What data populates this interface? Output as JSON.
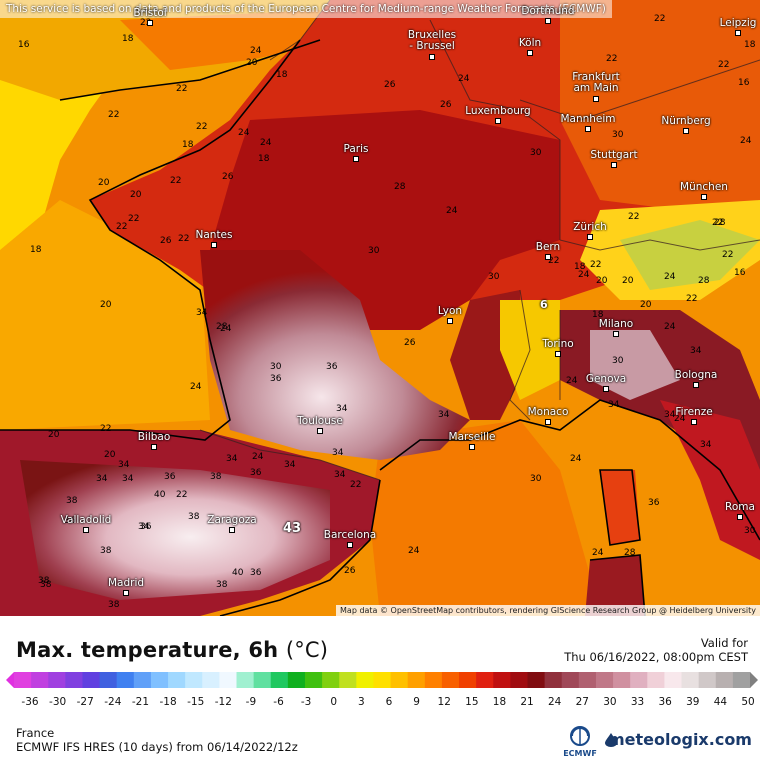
{
  "header": {
    "notice": "This service is based on data and products of the European Centre for Medium-range Weather Forecasts (ECMWF)"
  },
  "map": {
    "attribution": "Map data © OpenStreetMap contributors, rendering GIScience Research Group @ Heidelberg University",
    "cities": [
      {
        "name": "Bristol"
      },
      {
        "name": "Bruxelles\n- Brussel"
      },
      {
        "name": "Köln"
      },
      {
        "name": "Dortmund"
      },
      {
        "name": "Leipzig"
      },
      {
        "name": "Frankfurt\nam Main"
      },
      {
        "name": "Luxembourg"
      },
      {
        "name": "Mannheim"
      },
      {
        "name": "Nürnberg"
      },
      {
        "name": "Paris"
      },
      {
        "name": "Stuttgart"
      },
      {
        "name": "München"
      },
      {
        "name": "Zürich"
      },
      {
        "name": "Nantes"
      },
      {
        "name": "Bern"
      },
      {
        "name": "Lyon"
      },
      {
        "name": "Milano"
      },
      {
        "name": "Torino"
      },
      {
        "name": "Genova"
      },
      {
        "name": "Bologna"
      },
      {
        "name": "Firenze"
      },
      {
        "name": "Bilbao"
      },
      {
        "name": "Toulouse"
      },
      {
        "name": "Marseille"
      },
      {
        "name": "Monaco"
      },
      {
        "name": "Roma"
      },
      {
        "name": "Valladolid"
      },
      {
        "name": "Zaragoza"
      },
      {
        "name": "Barcelona"
      },
      {
        "name": "Madrid"
      }
    ],
    "temperature_labels": [
      "16",
      "22",
      "18",
      "24",
      "20",
      "18",
      "22",
      "26",
      "24",
      "22",
      "22",
      "18",
      "22",
      "16",
      "22",
      "22",
      "24",
      "24",
      "18",
      "26",
      "22",
      "20",
      "28",
      "20",
      "22",
      "24",
      "18",
      "18",
      "20",
      "26",
      "22",
      "28",
      "30",
      "22",
      "28",
      "28",
      "24",
      "30",
      "24",
      "20",
      "24",
      "22",
      "26",
      "30",
      "30",
      "24",
      "22",
      "22",
      "18",
      "20",
      "22",
      "16",
      "22",
      "22",
      "20",
      "18",
      "24",
      "34",
      "30",
      "34",
      "24",
      "34",
      "36",
      "22",
      "34",
      "36",
      "30",
      "26",
      "20",
      "24",
      "34",
      "34",
      "24",
      "20",
      "22",
      "36",
      "34",
      "34",
      "34",
      "22",
      "38",
      "36",
      "34",
      "38",
      "38",
      "34",
      "34",
      "34",
      "36",
      "40",
      "36",
      "38",
      "36",
      "30",
      "24",
      "38",
      "38",
      "38",
      "24",
      "40",
      "26",
      "24",
      "34",
      "34",
      "36",
      "30",
      "38",
      "28",
      "24"
    ],
    "max_marker": "43",
    "min_marker": "6"
  },
  "panel": {
    "title": "Max. temperature, 6h",
    "unit": "(°C)",
    "valid_label": "Valid for",
    "valid_time": "Thu 06/16/2022, 08:00pm CEST",
    "scale_ticks": [
      "-36",
      "-30",
      "-27",
      "-24",
      "-21",
      "-18",
      "-15",
      "-12",
      "-9",
      "-6",
      "-3",
      "0",
      "3",
      "6",
      "9",
      "12",
      "15",
      "18",
      "21",
      "24",
      "27",
      "30",
      "33",
      "36",
      "39",
      "44",
      "50"
    ],
    "region": "France",
    "model": "ECMWF IFS HRES (10 days) from 06/14/2022/12z",
    "ecmwf_label": "ECMWF",
    "brand": "meteologix.com"
  },
  "colors": {
    "sea_cool": "#f2a200",
    "hot_land": "#d21a12",
    "very_hot": "#8a1010",
    "extreme": "#e8d0d8",
    "cool_land": "#ffe000"
  }
}
